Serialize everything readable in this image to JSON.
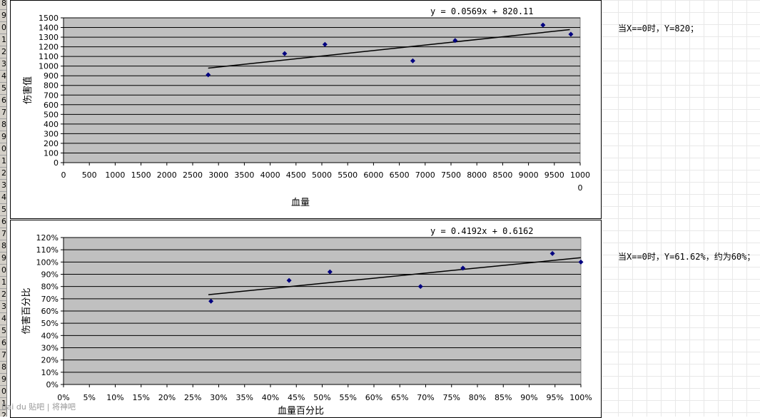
{
  "row_headers": [
    "8",
    "9",
    "0",
    "1",
    "2",
    "3",
    "4",
    "5",
    "6",
    "7",
    "8",
    "9",
    "0",
    "1",
    "2",
    "3",
    "4",
    "5",
    "6",
    "7",
    "8",
    "9",
    "0",
    "1",
    "2",
    "3",
    "4",
    "5",
    "6",
    "7",
    "8",
    "9",
    "0",
    "1",
    "2"
  ],
  "notes": {
    "note1": "当X==0时，Y=820；",
    "note2": "当X==0时，Y=61.62%，约为60%；"
  },
  "watermark": "Bai du 贴吧 | 将神吧",
  "colors": {
    "plot_bg": "#c0c0c0",
    "marker": "#000080",
    "trend": "#000000",
    "gridline": "#000000",
    "grid_lines_bg": "#e8e8e8"
  },
  "chart_data": [
    {
      "type": "scatter",
      "title": "",
      "xlabel": "血量",
      "ylabel": "伤害值",
      "trendline_label": "y = 0.0569x + 820.11",
      "trendline": {
        "slope": 0.0569,
        "intercept": 820.11,
        "x_range": [
          2800,
          9800
        ]
      },
      "xlim": [
        0,
        10000
      ],
      "ylim": [
        0,
        1500
      ],
      "x_ticks": [
        "0",
        "500",
        "1000",
        "1500",
        "2000",
        "2500",
        "3000",
        "3500",
        "4000",
        "4500",
        "5000",
        "5500",
        "6000",
        "6500",
        "7000",
        "7500",
        "8000",
        "8500",
        "9000",
        "9500",
        "1000"
      ],
      "x_tick_overflow": "0",
      "y_ticks": [
        "0",
        "100",
        "200",
        "300",
        "400",
        "500",
        "600",
        "700",
        "800",
        "900",
        "1000",
        "1100",
        "1200",
        "1300",
        "1400",
        "1500"
      ],
      "points": [
        {
          "x": 2800,
          "y": 910
        },
        {
          "x": 4280,
          "y": 1130
        },
        {
          "x": 5060,
          "y": 1225
        },
        {
          "x": 6760,
          "y": 1055
        },
        {
          "x": 7580,
          "y": 1265
        },
        {
          "x": 9280,
          "y": 1425
        },
        {
          "x": 9820,
          "y": 1330
        }
      ],
      "grid": true
    },
    {
      "type": "scatter",
      "title": "",
      "xlabel": "血量百分比",
      "ylabel": "伤害百分比",
      "trendline_label": "y = 0.4192x + 0.6162",
      "trendline": {
        "slope": 0.4192,
        "intercept": 0.6162,
        "x_range": [
          0.28,
          1.0
        ]
      },
      "xlim": [
        0,
        1
      ],
      "ylim": [
        0,
        1.2
      ],
      "x_ticks": [
        "0%",
        "5%",
        "10%",
        "15%",
        "20%",
        "25%",
        "30%",
        "35%",
        "40%",
        "45%",
        "50%",
        "55%",
        "60%",
        "65%",
        "70%",
        "75%",
        "80%",
        "85%",
        "90%",
        "95%",
        "100%"
      ],
      "y_ticks": [
        "0%",
        "10%",
        "20%",
        "30%",
        "40%",
        "50%",
        "60%",
        "70%",
        "80%",
        "90%",
        "100%",
        "110%",
        "120%"
      ],
      "points": [
        {
          "x": 0.285,
          "y": 0.68
        },
        {
          "x": 0.436,
          "y": 0.85
        },
        {
          "x": 0.515,
          "y": 0.92
        },
        {
          "x": 0.69,
          "y": 0.8
        },
        {
          "x": 0.772,
          "y": 0.95
        },
        {
          "x": 0.945,
          "y": 1.07
        },
        {
          "x": 1.0,
          "y": 1.0
        }
      ],
      "grid": true
    }
  ]
}
